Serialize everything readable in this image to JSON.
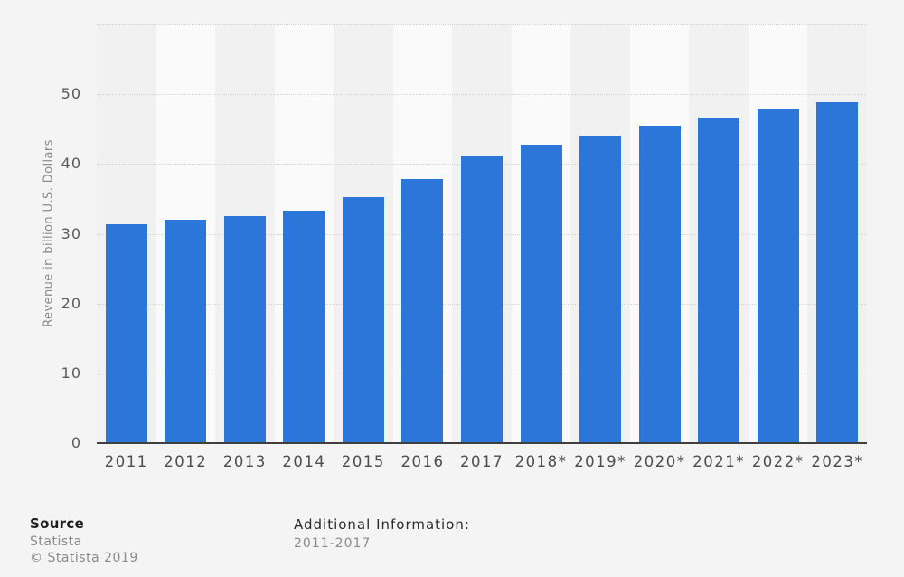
{
  "chart_data": {
    "type": "bar",
    "categories": [
      "2011",
      "2012",
      "2013",
      "2014",
      "2015",
      "2016",
      "2017",
      "2018*",
      "2019*",
      "2020*",
      "2021*",
      "2022*",
      "2023*"
    ],
    "values": [
      31.3,
      32.0,
      32.5,
      33.3,
      35.2,
      37.8,
      41.2,
      42.8,
      44.1,
      45.5,
      46.7,
      48.0,
      48.9
    ],
    "title": "",
    "xlabel": "",
    "ylabel": "Revenue in billion U.S. Dollars",
    "ylim": [
      0,
      60
    ],
    "y_ticks": [
      0,
      10,
      20,
      30,
      40,
      50
    ],
    "y_gridlines": [
      10,
      20,
      30,
      40,
      50,
      60
    ],
    "grid": "horizontal-dotted",
    "legend": "none",
    "bar_color": "#2b76d8",
    "band_color_odd": "#f1f1f2",
    "band_color_even": "#fafafa",
    "axis_line_color": "#3f3f3f"
  },
  "footer": {
    "source_label": "Source",
    "source_name": "Statista",
    "copyright": "© Statista 2019",
    "additional_info_label": "Additional Information:",
    "additional_info_value": "2011-2017"
  }
}
